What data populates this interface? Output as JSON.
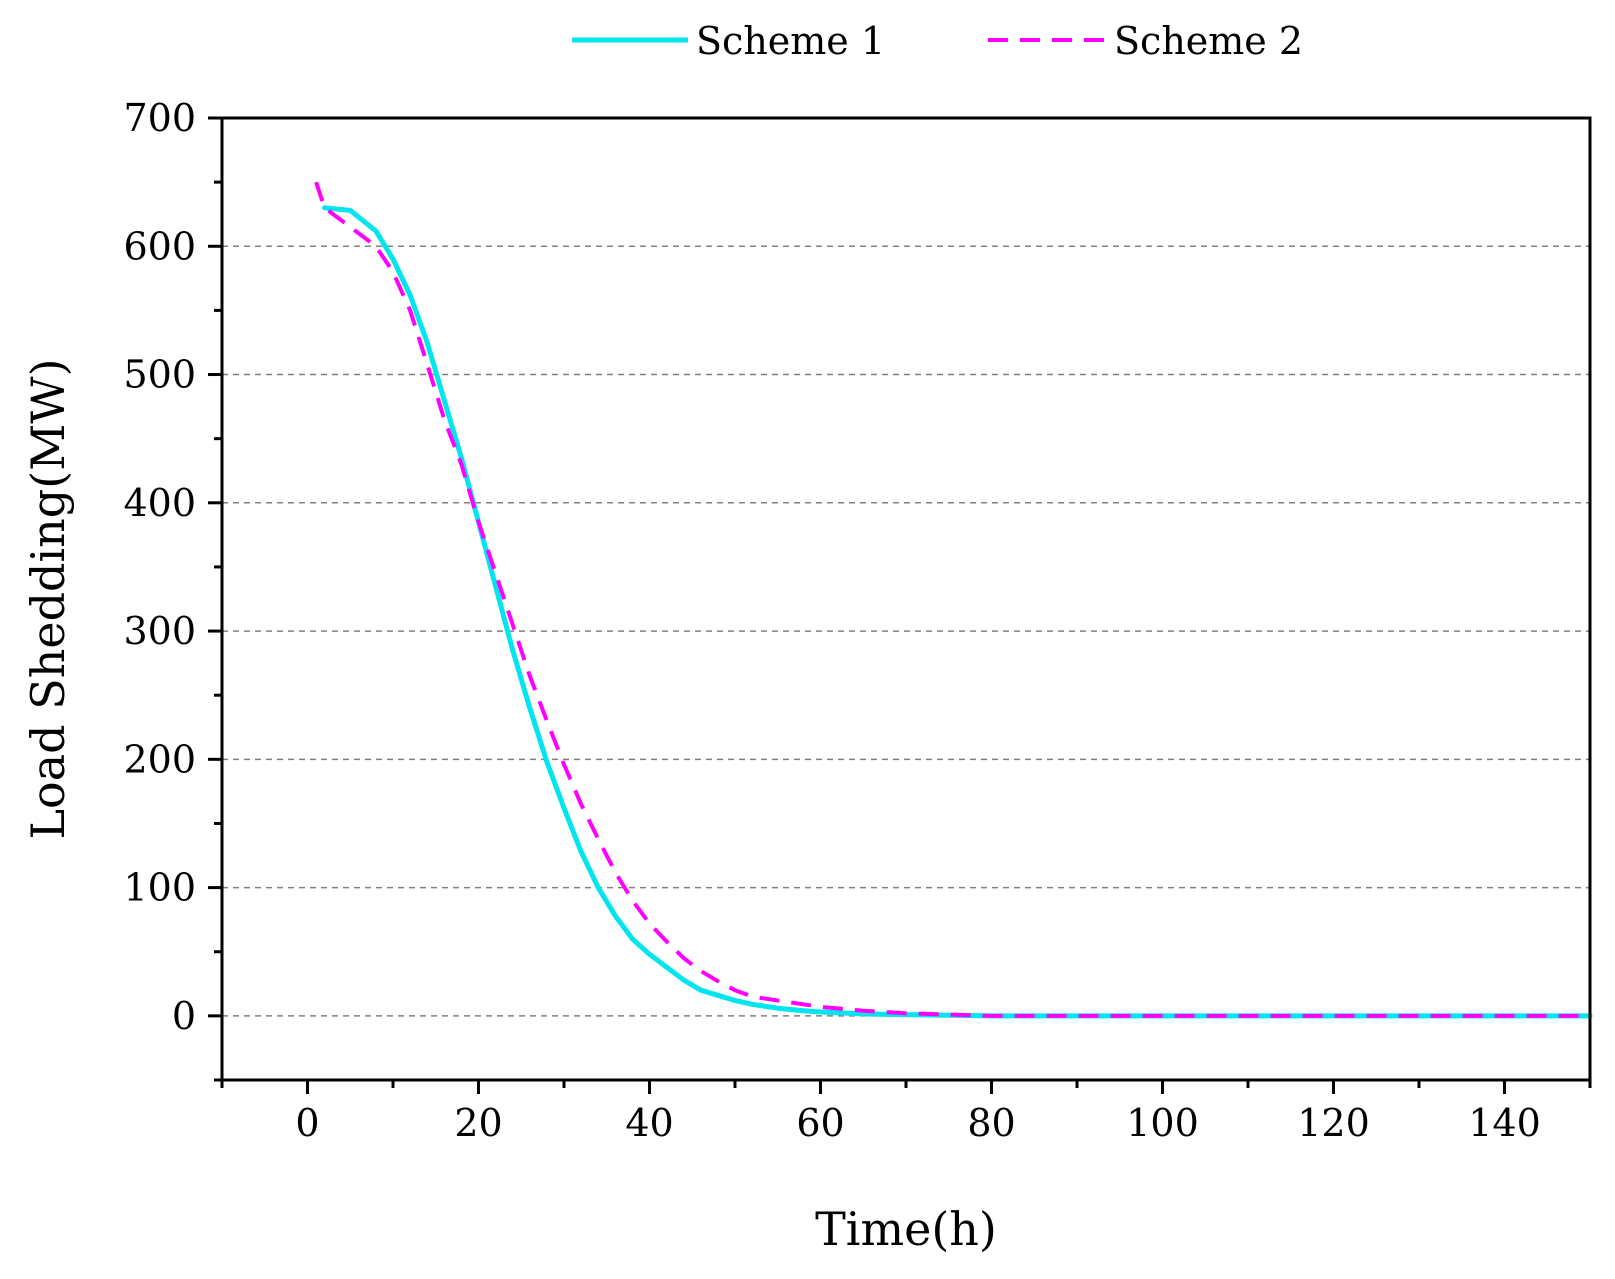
{
  "chart_data": {
    "type": "line",
    "title": "",
    "xlabel": "Time(h)",
    "ylabel": "Load Shedding(MW)",
    "xlim": [
      -10,
      150
    ],
    "ylim": [
      -50,
      700
    ],
    "xticks": [
      0,
      20,
      40,
      60,
      80,
      100,
      120,
      140
    ],
    "yticks": [
      0,
      100,
      200,
      300,
      400,
      500,
      600,
      700
    ],
    "xtick_labels": [
      "0",
      "20",
      "40",
      "60",
      "80",
      "100",
      "120",
      "140"
    ],
    "ytick_labels": [
      "0",
      "100",
      "200",
      "300",
      "400",
      "500",
      "600",
      "700"
    ],
    "grid": "horizontal dashed",
    "legend_position": "top-center",
    "series": [
      {
        "name": "Scheme 1",
        "color": "#00e5ee",
        "style": "solid",
        "x": [
          2,
          5,
          8,
          10,
          12,
          14,
          16,
          18,
          20,
          22,
          24,
          26,
          28,
          30,
          32,
          34,
          36,
          38,
          40,
          42,
          44,
          46,
          48,
          50,
          52,
          55,
          58,
          60,
          65,
          70,
          75,
          80,
          90,
          100,
          110,
          120,
          130,
          140,
          150
        ],
        "y": [
          630,
          628,
          612,
          590,
          562,
          525,
          480,
          435,
          385,
          335,
          285,
          240,
          198,
          162,
          128,
          100,
          78,
          60,
          48,
          38,
          28,
          20,
          16,
          12,
          9,
          6,
          4,
          3,
          1.5,
          1,
          0.5,
          0,
          0,
          0,
          0,
          0,
          0,
          0,
          0
        ]
      },
      {
        "name": "Scheme 2",
        "color": "#ff00ff",
        "style": "dashed",
        "x": [
          1,
          2,
          5,
          8,
          10,
          12,
          14,
          16,
          18,
          20,
          22,
          24,
          26,
          28,
          30,
          32,
          34,
          36,
          38,
          40,
          42,
          44,
          46,
          48,
          50,
          52,
          55,
          58,
          60,
          65,
          70,
          75,
          80,
          90,
          100,
          110,
          120,
          130,
          140,
          150
        ],
        "y": [
          650,
          630,
          615,
          600,
          580,
          550,
          508,
          465,
          430,
          385,
          345,
          305,
          265,
          230,
          196,
          165,
          138,
          112,
          90,
          72,
          58,
          45,
          35,
          27,
          20,
          15,
          12,
          9,
          7,
          4,
          2,
          1,
          0,
          0,
          0,
          0,
          0,
          0,
          0,
          0
        ]
      }
    ]
  }
}
